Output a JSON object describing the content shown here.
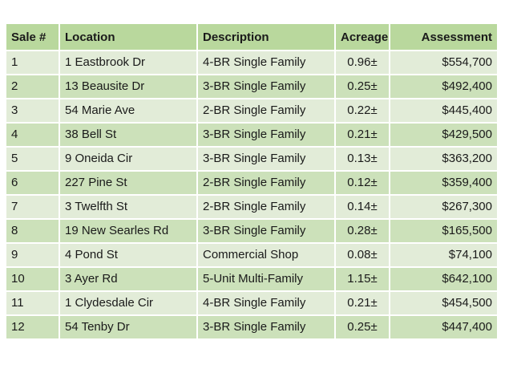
{
  "table": {
    "columns": [
      "Sale #",
      "Location",
      "Description",
      "Acreage",
      "Assessment"
    ],
    "rows": [
      {
        "sale": "1",
        "location": "1 Eastbrook Dr",
        "description": "4-BR  Single Family",
        "acreage": "0.96±",
        "assessment": "$554,700"
      },
      {
        "sale": "2",
        "location": "13 Beausite Dr",
        "description": "3-BR Single Family",
        "acreage": "0.25±",
        "assessment": "$492,400"
      },
      {
        "sale": "3",
        "location": "54 Marie Ave",
        "description": "2-BR Single Family",
        "acreage": "0.22±",
        "assessment": "$445,400"
      },
      {
        "sale": "4",
        "location": "38 Bell St",
        "description": "3-BR  Single Family",
        "acreage": "0.21±",
        "assessment": "$429,500"
      },
      {
        "sale": "5",
        "location": "9 Oneida Cir",
        "description": "3-BR Single Family",
        "acreage": "0.13±",
        "assessment": "$363,200"
      },
      {
        "sale": "6",
        "location": "227 Pine St",
        "description": "2-BR  Single Family",
        "acreage": "0.12±",
        "assessment": "$359,400"
      },
      {
        "sale": "7",
        "location": "3 Twelfth St",
        "description": "2-BR Single Family",
        "acreage": "0.14±",
        "assessment": "$267,300"
      },
      {
        "sale": "8",
        "location": "19 New Searles Rd",
        "description": "3-BR Single Family",
        "acreage": "0.28±",
        "assessment": "$165,500"
      },
      {
        "sale": "9",
        "location": "4 Pond St",
        "description": "Commercial Shop",
        "acreage": "0.08±",
        "assessment": "$74,100"
      },
      {
        "sale": "10",
        "location": "3 Ayer Rd",
        "description": "5-Unit Multi-Family",
        "acreage": "1.15±",
        "assessment": "$642,100"
      },
      {
        "sale": "11",
        "location": "1 Clydesdale Cir",
        "description": "4-BR Single Family",
        "acreage": "0.21±",
        "assessment": "$454,500"
      },
      {
        "sale": "12",
        "location": "54 Tenby Dr",
        "description": "3-BR Single Family",
        "acreage": "0.25±",
        "assessment": "$447,400"
      }
    ]
  },
  "colors": {
    "header_bg": "#b9d89d",
    "row_light": "#e2ecd8",
    "row_dark": "#cce1ba"
  }
}
